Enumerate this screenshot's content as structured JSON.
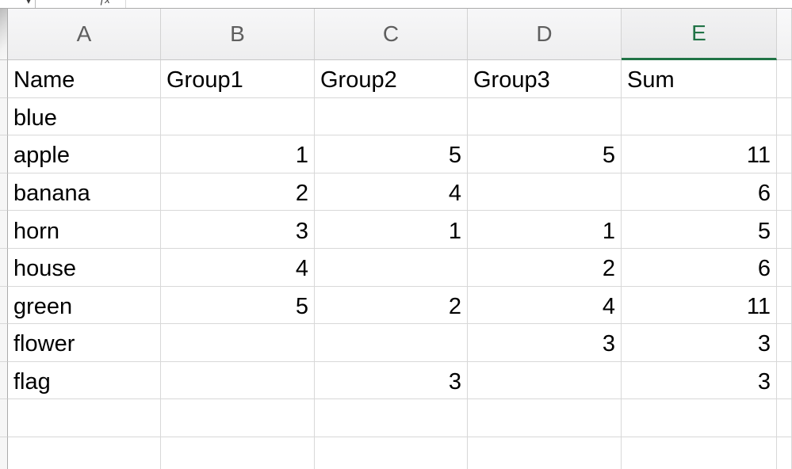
{
  "top_bar": {
    "name_box_caret": "▾",
    "fx_icon": "ƒx"
  },
  "sheet": {
    "selected_column": "E",
    "column_headers": [
      "A",
      "B",
      "C",
      "D",
      "E"
    ],
    "rows": [
      {
        "cells": [
          "Name",
          "Group1",
          "Group2",
          "Group3",
          "Sum"
        ]
      },
      {
        "cells": [
          "blue",
          "",
          "",
          "",
          ""
        ]
      },
      {
        "cells": [
          "apple",
          "1",
          "5",
          "5",
          "11"
        ]
      },
      {
        "cells": [
          "banana",
          "2",
          "4",
          "",
          "6"
        ]
      },
      {
        "cells": [
          "horn",
          "3",
          "1",
          "1",
          "5"
        ]
      },
      {
        "cells": [
          "house",
          "4",
          "",
          "2",
          "6"
        ]
      },
      {
        "cells": [
          "green",
          "5",
          "2",
          "4",
          "11"
        ]
      },
      {
        "cells": [
          "flower",
          "",
          "",
          "3",
          "3"
        ]
      },
      {
        "cells": [
          "flag",
          "",
          "3",
          "",
          "3"
        ]
      },
      {
        "cells": [
          "",
          "",
          "",
          "",
          ""
        ]
      },
      {
        "cells": [
          "",
          "",
          "",
          "",
          ""
        ]
      }
    ]
  },
  "colors": {
    "selection_green": "#217346",
    "header_text": "#5f5f5f",
    "gridline": "#d8d8d8"
  }
}
